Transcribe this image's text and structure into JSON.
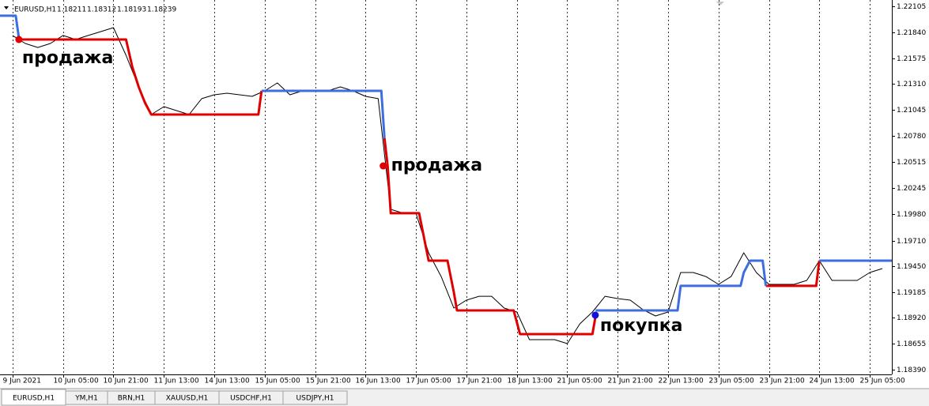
{
  "chart_data": {
    "type": "line",
    "symbol": "EURUSD,H1",
    "ohlc": [
      1.18211,
      1.18312,
      1.18193,
      1.18239
    ],
    "xlim": [
      -4,
      279
    ],
    "xticks": [
      {
        "value": 0,
        "label": "9 Jun 2021"
      },
      {
        "value": 16,
        "label": "10 Jun 05:00"
      },
      {
        "value": 32,
        "label": "10 Jun 21:00"
      },
      {
        "value": 48,
        "label": "11 Jun 13:00"
      },
      {
        "value": 64,
        "label": "14 Jun 13:00"
      },
      {
        "value": 80,
        "label": "15 Jun 05:00"
      },
      {
        "value": 96,
        "label": "15 Jun 21:00"
      },
      {
        "value": 112,
        "label": "16 Jun 13:00"
      },
      {
        "value": 128,
        "label": "17 Jun 05:00"
      },
      {
        "value": 144,
        "label": "17 Jun 21:00"
      },
      {
        "value": 160,
        "label": "18 Jun 13:00"
      },
      {
        "value": 176,
        "label": "21 Jun 05:00"
      },
      {
        "value": 192,
        "label": "21 Jun 21:00"
      },
      {
        "value": 208,
        "label": "22 Jun 13:00"
      },
      {
        "value": 224,
        "label": "23 Jun 05:00"
      },
      {
        "value": 240,
        "label": "23 Jun 21:00"
      },
      {
        "value": 256,
        "label": "24 Jun 13:00"
      },
      {
        "value": 272,
        "label": "25 Jun 05:00"
      }
    ],
    "ylim": [
      1.18342,
      1.2217
    ],
    "yticks": [
      1.22105,
      {
        "value": 1.2184,
        "label": "1.21840"
      },
      1.21575,
      {
        "value": 1.2131,
        "label": "1.21310"
      },
      1.21045,
      {
        "value": 1.2078,
        "label": "1.20780"
      },
      1.20515,
      1.20245,
      {
        "value": 1.1998,
        "label": "1.19980"
      },
      {
        "value": 1.1971,
        "label": "1.19710"
      },
      {
        "value": 1.1945,
        "label": "1.19450"
      },
      1.19185,
      {
        "value": 1.1892,
        "label": "1.18920"
      },
      1.18655,
      {
        "value": 1.1839,
        "label": "1.18390"
      }
    ],
    "grid": true,
    "series": [
      {
        "color": "#000000",
        "width": 1,
        "x": [
          0,
          4,
          8,
          12,
          16,
          20,
          24,
          28,
          32,
          36,
          40,
          44,
          48,
          52,
          56,
          60,
          64,
          68,
          72,
          76,
          80,
          84,
          88,
          92,
          96,
          100,
          104,
          108,
          112,
          116,
          120,
          124,
          128,
          132,
          136,
          140,
          144,
          148,
          152,
          156,
          160,
          164,
          168,
          172,
          176,
          180,
          184,
          188,
          192,
          196,
          200,
          204,
          208,
          212,
          216,
          220,
          224,
          228,
          232,
          236,
          240,
          244,
          248,
          252,
          256,
          260,
          264,
          268,
          272,
          276
        ],
        "values": [
          1.21807,
          1.21726,
          1.21685,
          1.21726,
          1.21807,
          1.21766,
          1.21807,
          1.21847,
          1.21887,
          1.21605,
          1.21282,
          1.20999,
          1.2108,
          1.21039,
          1.20999,
          1.21161,
          1.21201,
          1.21217,
          1.21201,
          1.21185,
          1.21241,
          1.21322,
          1.21201,
          1.21241,
          1.21241,
          1.21241,
          1.21282,
          1.21241,
          1.21185,
          1.21161,
          1.2003,
          1.1999,
          1.1999,
          1.19586,
          1.19343,
          1.1902,
          1.19101,
          1.19141,
          1.19141,
          1.1902,
          1.1898,
          1.18697,
          1.18697,
          1.18697,
          1.18657,
          1.18859,
          1.1898,
          1.19141,
          1.19117,
          1.19101,
          1.19004,
          1.1894,
          1.1898,
          1.19384,
          1.19384,
          1.19343,
          1.19263,
          1.19343,
          1.19586,
          1.19384,
          1.19263,
          1.19263,
          1.19263,
          1.19303,
          1.19505,
          1.19303,
          1.19303,
          1.19303,
          1.19384,
          1.19424
        ]
      },
      {
        "color": "#e00000",
        "width": 3,
        "x": [
          2,
          36,
          38,
          40,
          42,
          44,
          78,
          79,
          null,
          118,
          119,
          120,
          129,
          132,
          138,
          140,
          141,
          159,
          161,
          184,
          185,
          null,
          239,
          255,
          256
        ],
        "values": [
          1.21766,
          1.21766,
          1.21484,
          1.21282,
          1.2112,
          1.20999,
          1.20999,
          1.21241,
          null,
          1.20757,
          1.20474,
          1.1999,
          1.1999,
          1.19505,
          1.19505,
          1.19182,
          1.18996,
          1.18996,
          1.18754,
          1.18754,
          1.1894,
          null,
          1.19247,
          1.19247,
          1.19505
        ]
      },
      {
        "color": "#3c6ee0",
        "width": 3,
        "x": [
          -4,
          1,
          2,
          null,
          79,
          117,
          118,
          null,
          185,
          211,
          212,
          231,
          232,
          234,
          238,
          239,
          null,
          256,
          279
        ],
        "values": [
          1.22009,
          1.22009,
          1.21782,
          null,
          1.21241,
          1.21241,
          1.20757,
          null,
          1.18996,
          1.18996,
          1.19247,
          1.19247,
          1.19384,
          1.19505,
          1.19505,
          1.19247,
          null,
          1.19505,
          1.19505
        ]
      }
    ],
    "annotations": [
      {
        "text": "продажа",
        "x": 2,
        "y": 1.21766,
        "color": "#e00000"
      },
      {
        "text": "продажа",
        "x": 117.6,
        "y": 1.20474,
        "color": "#e00000"
      },
      {
        "text": "покупка",
        "x": 184.9,
        "y": 1.18948,
        "color": "#1010e0"
      }
    ]
  },
  "tabs": [
    "EURUSD,H1",
    "YM,H1",
    "BRN,H1",
    "XAUUSD,H1",
    "USDCHF,H1",
    "USDJPY,H1"
  ]
}
